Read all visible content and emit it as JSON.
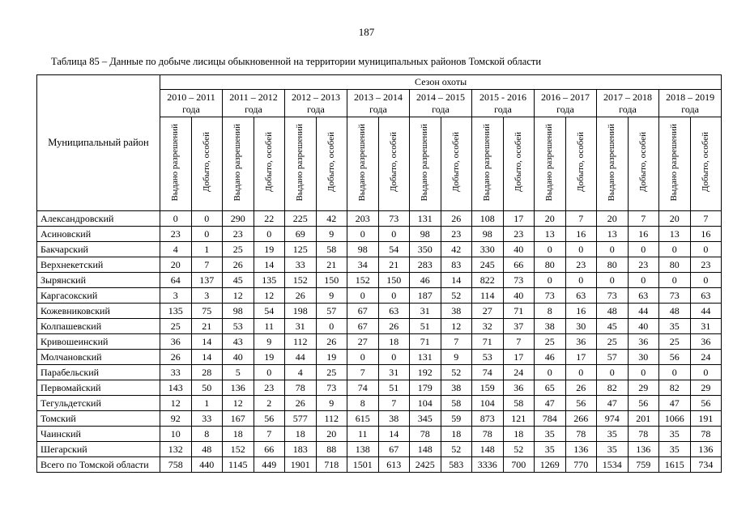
{
  "page": {
    "number": "187",
    "table_caption": "Таблица 85 – Данные по добыче лисицы обыкновенной на территории муниципальных районов Томской области"
  },
  "table": {
    "corner_header": "Муниципальный район",
    "season_header": "Сезон охоты",
    "seasons": [
      "2010 – 2011\nгода",
      "2011 – 2012\nгода",
      "2012 – 2013\nгода",
      "2013 – 2014\nгода",
      "2014 – 2015\nгода",
      "2015 - 2016\nгода",
      "2016 – 2017\nгода",
      "2017 – 2018\nгода",
      "2018 – 2019\nгода"
    ],
    "sub_headers": [
      "Выдано разрешений",
      "Добыто, особей"
    ],
    "rows": [
      {
        "district": "Александровский",
        "values": [
          0,
          0,
          290,
          22,
          225,
          42,
          203,
          73,
          131,
          26,
          108,
          17,
          20,
          7,
          20,
          7,
          20,
          7
        ]
      },
      {
        "district": "Асиновский",
        "values": [
          23,
          0,
          23,
          0,
          69,
          9,
          0,
          0,
          98,
          23,
          98,
          23,
          13,
          16,
          13,
          16,
          13,
          16
        ]
      },
      {
        "district": "Бакчарский",
        "values": [
          4,
          1,
          25,
          19,
          125,
          58,
          98,
          54,
          350,
          42,
          330,
          40,
          0,
          0,
          0,
          0,
          0,
          0
        ]
      },
      {
        "district": "Верхнекетский",
        "values": [
          20,
          7,
          26,
          14,
          33,
          21,
          34,
          21,
          283,
          83,
          245,
          66,
          80,
          23,
          80,
          23,
          80,
          23
        ]
      },
      {
        "district": "Зырянский",
        "values": [
          64,
          137,
          45,
          135,
          152,
          150,
          152,
          150,
          46,
          14,
          822,
          73,
          0,
          0,
          0,
          0,
          0,
          0
        ]
      },
      {
        "district": "Каргасокский",
        "values": [
          3,
          3,
          12,
          12,
          26,
          9,
          0,
          0,
          187,
          52,
          114,
          40,
          73,
          63,
          73,
          63,
          73,
          63
        ]
      },
      {
        "district": "Кожевниковский",
        "values": [
          135,
          75,
          98,
          54,
          198,
          57,
          67,
          63,
          31,
          38,
          27,
          71,
          8,
          16,
          48,
          44,
          48,
          44
        ]
      },
      {
        "district": "Колпашевский",
        "values": [
          25,
          21,
          53,
          11,
          31,
          0,
          67,
          26,
          51,
          12,
          32,
          37,
          38,
          30,
          45,
          40,
          35,
          31
        ]
      },
      {
        "district": "Кривошеинский",
        "values": [
          36,
          14,
          43,
          9,
          112,
          26,
          27,
          18,
          71,
          7,
          71,
          7,
          25,
          36,
          25,
          36,
          25,
          36
        ]
      },
      {
        "district": "Молчановский",
        "values": [
          26,
          14,
          40,
          19,
          44,
          19,
          0,
          0,
          131,
          9,
          53,
          17,
          46,
          17,
          57,
          30,
          56,
          24
        ]
      },
      {
        "district": "Парабельский",
        "values": [
          33,
          28,
          5,
          0,
          4,
          25,
          7,
          31,
          192,
          52,
          74,
          24,
          0,
          0,
          0,
          0,
          0,
          0
        ]
      },
      {
        "district": "Первомайский",
        "values": [
          143,
          50,
          136,
          23,
          78,
          73,
          74,
          51,
          179,
          38,
          159,
          36,
          65,
          26,
          82,
          29,
          82,
          29
        ]
      },
      {
        "district": "Тегульдетский",
        "values": [
          12,
          1,
          12,
          2,
          26,
          9,
          8,
          7,
          104,
          58,
          104,
          58,
          47,
          56,
          47,
          56,
          47,
          56
        ]
      },
      {
        "district": "Томский",
        "values": [
          92,
          33,
          167,
          56,
          577,
          112,
          615,
          38,
          345,
          59,
          873,
          121,
          784,
          266,
          974,
          201,
          1066,
          191
        ]
      },
      {
        "district": "Чаинский",
        "values": [
          10,
          8,
          18,
          7,
          18,
          20,
          11,
          14,
          78,
          18,
          78,
          18,
          35,
          78,
          35,
          78,
          35,
          78
        ]
      },
      {
        "district": "Шегарский",
        "values": [
          132,
          48,
          152,
          66,
          183,
          88,
          138,
          67,
          148,
          52,
          148,
          52,
          35,
          136,
          35,
          136,
          35,
          136
        ]
      },
      {
        "district": "Всего по Томской области",
        "values": [
          758,
          440,
          1145,
          449,
          1901,
          718,
          1501,
          613,
          2425,
          583,
          3336,
          700,
          1269,
          770,
          1534,
          759,
          1615,
          734
        ]
      }
    ]
  }
}
